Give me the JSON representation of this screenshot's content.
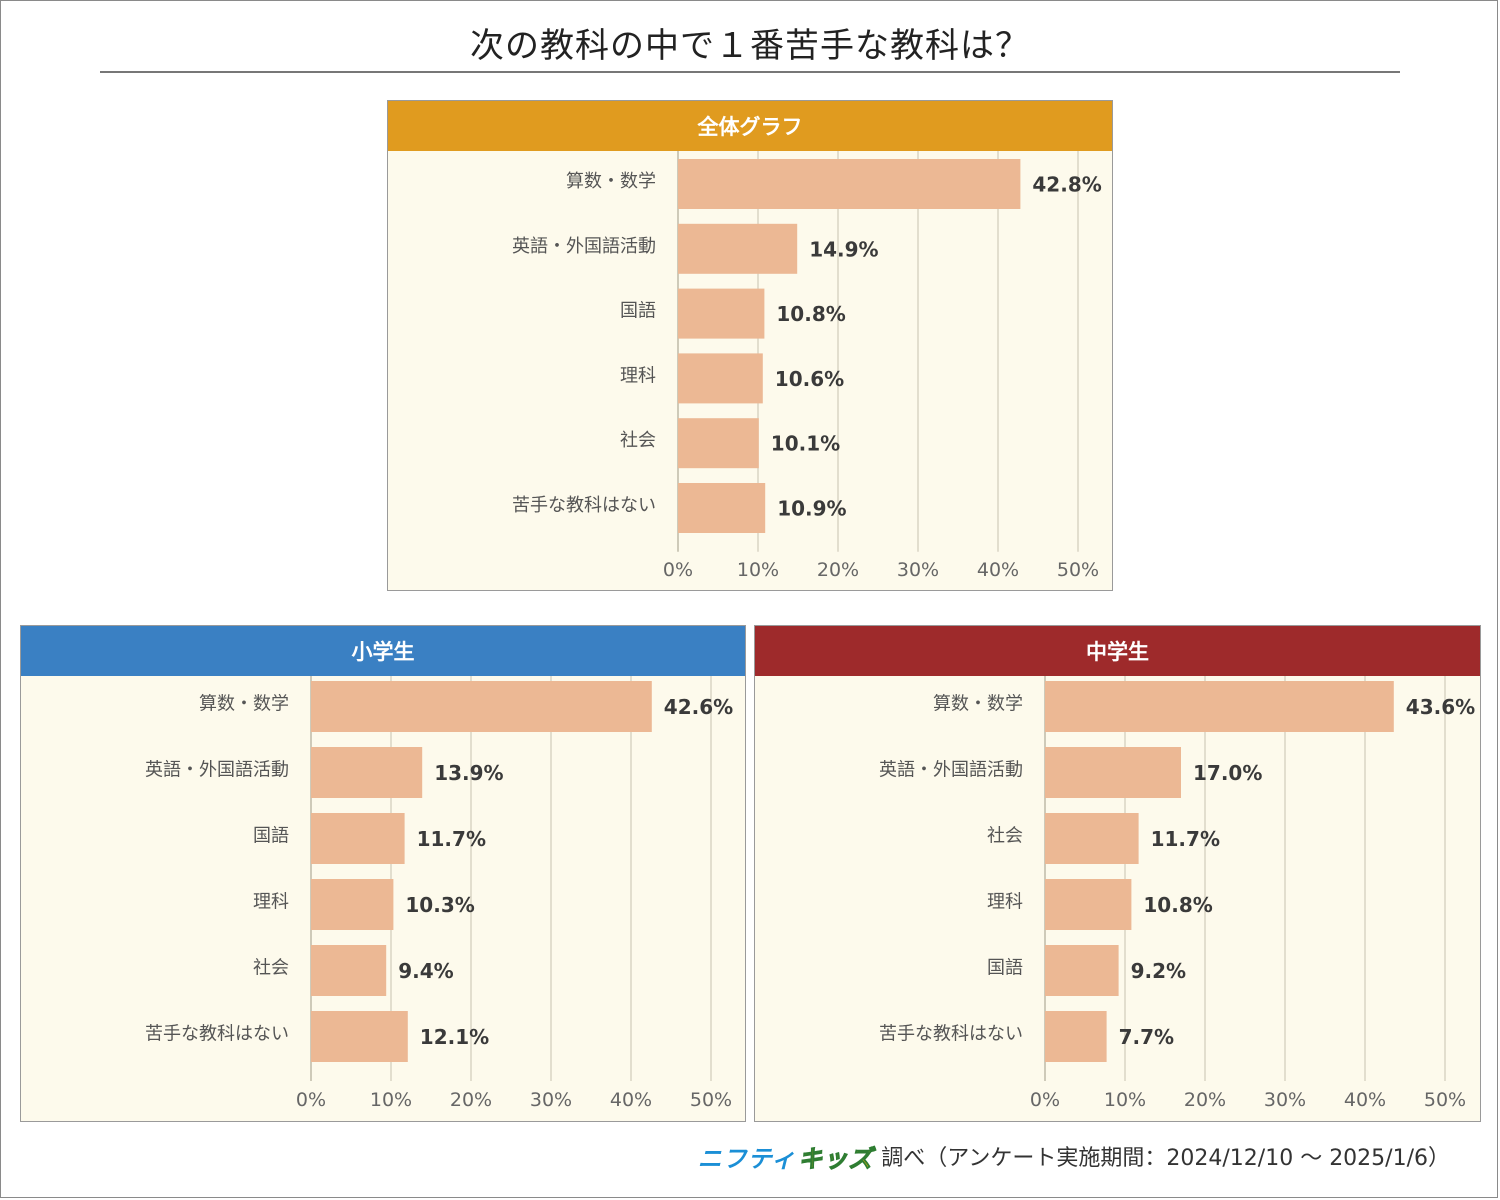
{
  "title": "次の教科の中で１番苦手な教科は？",
  "footer": {
    "logo_left": "ニフティ",
    "logo_right": "キッズ",
    "text": "調べ（アンケート実施期間：2024/12/10 ～ 2025/1/6）"
  },
  "colors": {
    "bar": "#ecb894",
    "panel_bg": "#fdfaec",
    "grid": "#d9d4c4"
  },
  "panels": [
    {
      "id": "overall",
      "header": "全体グラフ",
      "header_color": "#e09b1f"
    },
    {
      "id": "elementary",
      "header": "小学生",
      "header_color": "#3a80c3"
    },
    {
      "id": "junior",
      "header": "中学生",
      "header_color": "#9e2a2b"
    }
  ],
  "chart_data": [
    {
      "type": "bar",
      "orientation": "horizontal",
      "title": "全体グラフ",
      "categories": [
        "算数・数学",
        "英語・外国語活動",
        "国語",
        "理科",
        "社会",
        "苦手な教科はない"
      ],
      "values": [
        42.8,
        14.9,
        10.8,
        10.6,
        10.1,
        10.9
      ],
      "value_labels": [
        "42.8%",
        "14.9%",
        "10.8%",
        "10.6%",
        "10.1%",
        "10.9%"
      ],
      "xlim": [
        0,
        50
      ],
      "ticks": [
        "0%",
        "10%",
        "20%",
        "30%",
        "40%",
        "50%"
      ],
      "grid": true
    },
    {
      "type": "bar",
      "orientation": "horizontal",
      "title": "小学生",
      "categories": [
        "算数・数学",
        "英語・外国語活動",
        "国語",
        "理科",
        "社会",
        "苦手な教科はない"
      ],
      "values": [
        42.6,
        13.9,
        11.7,
        10.3,
        9.4,
        12.1
      ],
      "value_labels": [
        "42.6%",
        "13.9%",
        "11.7%",
        "10.3%",
        "9.4%",
        "12.1%"
      ],
      "xlim": [
        0,
        50
      ],
      "ticks": [
        "0%",
        "10%",
        "20%",
        "30%",
        "40%",
        "50%"
      ],
      "grid": true
    },
    {
      "type": "bar",
      "orientation": "horizontal",
      "title": "中学生",
      "categories": [
        "算数・数学",
        "英語・外国語活動",
        "社会",
        "理科",
        "国語",
        "苦手な教科はない"
      ],
      "values": [
        43.6,
        17.0,
        11.7,
        10.8,
        9.2,
        7.7
      ],
      "value_labels": [
        "43.6%",
        "17.0%",
        "11.7%",
        "10.8%",
        "9.2%",
        "7.7%"
      ],
      "xlim": [
        0,
        50
      ],
      "ticks": [
        "0%",
        "10%",
        "20%",
        "30%",
        "40%",
        "50%"
      ],
      "grid": true
    }
  ]
}
